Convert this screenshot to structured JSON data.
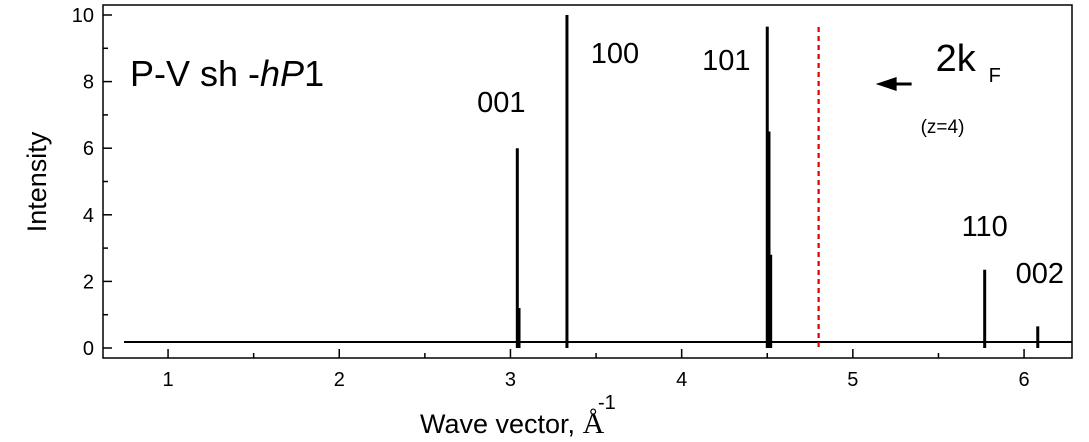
{
  "chart_data": {
    "type": "bar",
    "title_parts": [
      "P-V  sh -",
      "hP",
      "1"
    ],
    "xlabel": "Wave vector, ",
    "xlabel_unit": "Å",
    "xlabel_unit_superscript": "-1",
    "ylabel": "Intensity",
    "xlim": [
      0.62,
      6.28
    ],
    "ylim": [
      -0.3,
      10.3
    ],
    "xticks": [
      1,
      2,
      3,
      4,
      5,
      6
    ],
    "yticks": [
      0,
      2,
      4,
      6,
      8,
      10
    ],
    "peaks": [
      {
        "label": "001",
        "x": 3.04,
        "y": 6.0
      },
      {
        "label": "",
        "x": 3.05,
        "y": 1.2
      },
      {
        "label": "100",
        "x": 3.33,
        "y": 10.0
      },
      {
        "label": "101",
        "x": 4.5,
        "y": 9.65
      },
      {
        "label": "",
        "x": 4.51,
        "y": 6.5
      },
      {
        "label": "",
        "x": 4.52,
        "y": 2.8
      },
      {
        "label": "110",
        "x": 5.77,
        "y": 2.35
      },
      {
        "label": "002",
        "x": 6.08,
        "y": 0.65
      }
    ],
    "fermi_marker": {
      "x": 4.8,
      "color": "#e00000",
      "label_main": "2k",
      "label_sub": "F",
      "note": "(z=4)"
    },
    "grid": false,
    "legend": "none"
  }
}
